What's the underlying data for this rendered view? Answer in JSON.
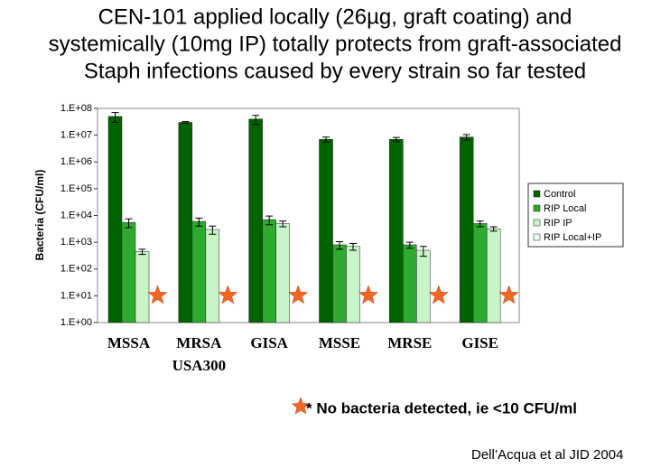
{
  "chart_data": {
    "type": "bar",
    "title": [
      "CEN-101 applied locally (26µg, graft coating) and",
      "systemically (10mg IP) totally protects from graft-associated",
      "Staph infections caused by every strain so far tested"
    ],
    "y_label": "Bacteria (CFU/ml)",
    "log_scale": true,
    "ylim": [
      1,
      100000000
    ],
    "yticks": [
      {
        "value": 1,
        "label": "1.E+00"
      },
      {
        "value": 10,
        "label": "1.E+01"
      },
      {
        "value": 100,
        "label": "1.E+02"
      },
      {
        "value": 1000,
        "label": "1.E+03"
      },
      {
        "value": 10000,
        "label": "1.E+04"
      },
      {
        "value": 100000,
        "label": "1.E+05"
      },
      {
        "value": 1000000,
        "label": "1.E+06"
      },
      {
        "value": 10000000,
        "label": "1.E+07"
      },
      {
        "value": 100000000,
        "label": "1.E+08"
      }
    ],
    "categories": [
      "MSSA",
      "MRSA",
      "GISA",
      "MSSE",
      "MRSE",
      "GISE"
    ],
    "category_note": "USA300",
    "series": [
      {
        "name": "Control",
        "color": "#006400",
        "values": [
          50000000,
          30000000,
          40000000,
          7000000,
          7000000,
          8500000
        ],
        "errors": [
          20000000,
          2000000,
          15000000,
          1500000,
          1200000,
          2000000
        ]
      },
      {
        "name": "RIP Local",
        "color": "#2eaa2e",
        "values": [
          5500,
          6000,
          7000,
          800,
          800,
          5000
        ],
        "errors": [
          2000,
          2000,
          2500,
          250,
          200,
          1200
        ]
      },
      {
        "name": "RIP IP",
        "color": "#c8f5c8",
        "values": [
          450,
          3000,
          5000,
          700,
          500,
          3200
        ],
        "errors": [
          100,
          1000,
          1200,
          200,
          200,
          600
        ]
      },
      {
        "name": "RIP Local+IP",
        "color": "#e6fff0",
        "values": [
          null,
          null,
          null,
          null,
          null,
          null
        ]
      }
    ],
    "legend": "right",
    "footnote": "* No bacteria detected, ie <10 CFU/ml",
    "citation": "Dell’Acqua et al JID 2004"
  }
}
